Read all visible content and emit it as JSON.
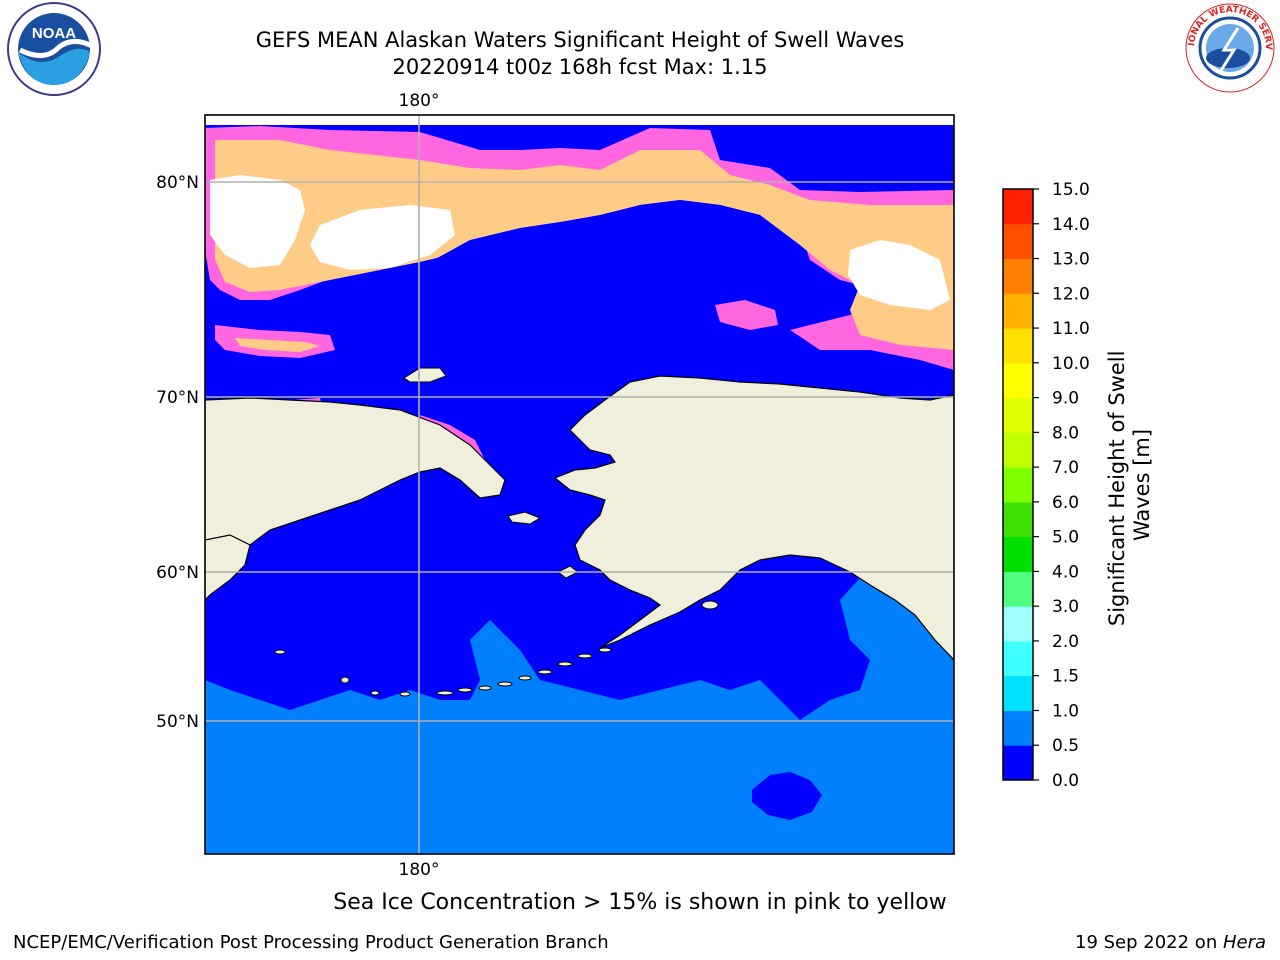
{
  "header": {
    "title_line1": "GEFS MEAN Alaskan Waters Significant Height of Swell Waves",
    "title_line2": "20220914 t00z 168h fcst   Max: 1.15"
  },
  "logos": {
    "noaa_text": "NOAA",
    "noaa_ring_text": "NATIONAL OCEANIC AND ATMOSPHERIC ADMINISTRATION · U.S. DEPARTMENT OF COMMERCE",
    "nws_ring_text": "NATIONAL WEATHER SERVICE"
  },
  "map": {
    "lon_label_top": "180°",
    "lon_label_bottom": "180°",
    "lat_labels": [
      "80°N",
      "70°N",
      "60°N",
      "50°N"
    ],
    "colors": {
      "ocean_low": "#0000ff",
      "ocean_mid": "#0080ff",
      "land": "#efefdc",
      "sea_ice_pink": "#ff66e0",
      "sea_ice_yellow": "#ffcc88",
      "grid": "#b0b0b0"
    }
  },
  "colorbar": {
    "label": "Significant Height of Swell Waves [m]",
    "label_line1": "Significant Height of Swell",
    "label_line2": "Waves [m]",
    "ticks": [
      "0.0",
      "0.5",
      "1.0",
      "1.5",
      "2.0",
      "3.0",
      "4.0",
      "5.0",
      "6.0",
      "7.0",
      "8.0",
      "9.0",
      "10.0",
      "11.0",
      "12.0",
      "13.0",
      "14.0",
      "15.0"
    ],
    "colors": [
      "#0000ff",
      "#0080ff",
      "#00e0ff",
      "#40ffff",
      "#a0ffff",
      "#50ff80",
      "#00e000",
      "#40e000",
      "#80ff00",
      "#c0ff00",
      "#e0ff00",
      "#ffff00",
      "#ffe000",
      "#ffb000",
      "#ff8000",
      "#ff5000",
      "#ff2000",
      "#ff0000"
    ]
  },
  "ice_note": "Sea Ice Concentration > 15% is shown in pink to yellow",
  "footer": {
    "left": "NCEP/EMC/Verification Post Processing Product Generation Branch",
    "right_prefix": "19 Sep 2022 on ",
    "right_host": "Hera"
  }
}
